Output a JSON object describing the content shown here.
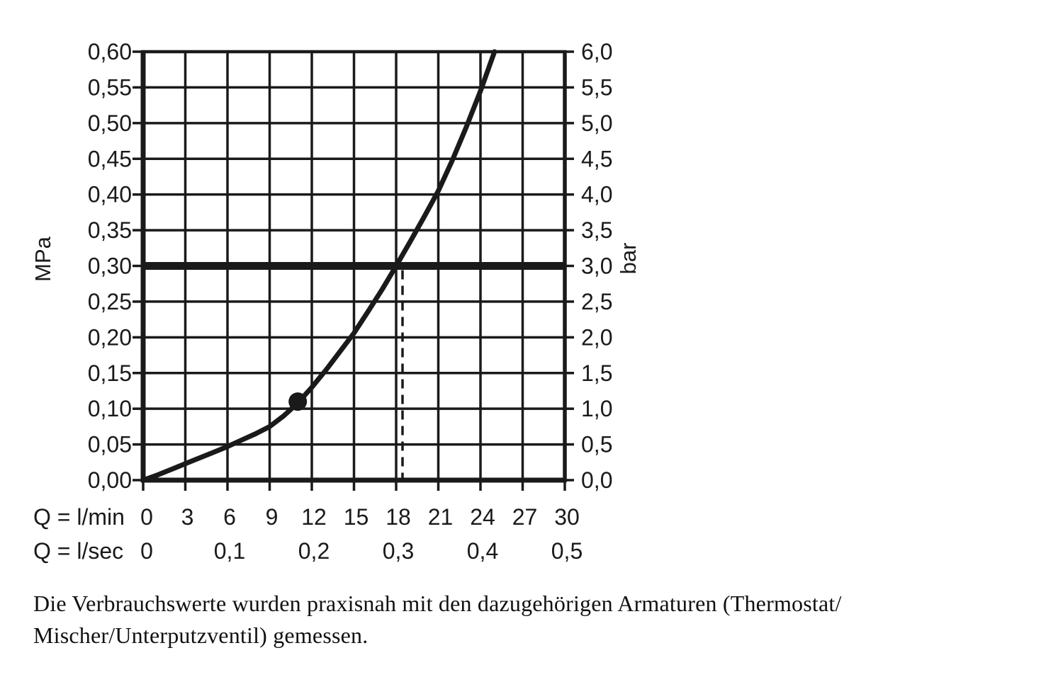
{
  "colors": {
    "ink": "#1a1a1a",
    "background": "#ffffff"
  },
  "chart_data": {
    "type": "line",
    "grid": true,
    "left_axis": {
      "unit": "MPa",
      "min": 0,
      "max": 0.6,
      "step": 0.05,
      "tick_labels": [
        "0,60",
        "0,55",
        "0,50",
        "0,45",
        "0,40",
        "0,35",
        "0,30",
        "0,25",
        "0,20",
        "0,15",
        "0,10",
        "0,05",
        "0,00"
      ]
    },
    "right_axis": {
      "unit": "bar",
      "min": 0,
      "max": 6.0,
      "step": 0.5,
      "tick_labels": [
        "6,0",
        "5,5",
        "5,0",
        "4,5",
        "4,0",
        "3,5",
        "3,0",
        "2,5",
        "2,0",
        "1,5",
        "1,0",
        "0,5",
        "0,0"
      ]
    },
    "x_axis": {
      "min": 0,
      "max": 30,
      "step": 3,
      "rows": [
        {
          "label": "Q = l/min",
          "ticks": [
            {
              "q": 0,
              "text": "0"
            },
            {
              "q": 3,
              "text": "3"
            },
            {
              "q": 6,
              "text": "6"
            },
            {
              "q": 9,
              "text": "9"
            },
            {
              "q": 12,
              "text": "12"
            },
            {
              "q": 15,
              "text": "15"
            },
            {
              "q": 18,
              "text": "18"
            },
            {
              "q": 21,
              "text": "21"
            },
            {
              "q": 24,
              "text": "24"
            },
            {
              "q": 27,
              "text": "27"
            },
            {
              "q": 30,
              "text": "30"
            }
          ]
        },
        {
          "label": "Q = l/sec",
          "ticks": [
            {
              "q": 0,
              "text": "0"
            },
            {
              "q": 6,
              "text": "0,1"
            },
            {
              "q": 12,
              "text": "0,2"
            },
            {
              "q": 18,
              "text": "0,3"
            },
            {
              "q": 24,
              "text": "0,4"
            },
            {
              "q": 30,
              "text": "0,5"
            }
          ]
        }
      ]
    },
    "series": [
      {
        "name": "flow-pressure-curve",
        "points": [
          [
            0,
            0.0
          ],
          [
            1,
            0.007
          ],
          [
            2,
            0.015
          ],
          [
            3,
            0.023
          ],
          [
            4,
            0.031
          ],
          [
            5,
            0.039
          ],
          [
            6,
            0.047
          ],
          [
            7,
            0.056
          ],
          [
            8,
            0.065
          ],
          [
            9,
            0.075
          ],
          [
            10,
            0.09
          ],
          [
            11,
            0.108
          ],
          [
            12,
            0.13
          ],
          [
            13,
            0.154
          ],
          [
            14,
            0.18
          ],
          [
            15,
            0.206
          ],
          [
            16,
            0.236
          ],
          [
            17,
            0.267
          ],
          [
            18,
            0.3
          ],
          [
            19,
            0.334
          ],
          [
            20,
            0.369
          ],
          [
            21,
            0.405
          ],
          [
            22,
            0.448
          ],
          [
            23,
            0.495
          ],
          [
            24,
            0.545
          ],
          [
            25,
            0.6
          ]
        ]
      }
    ],
    "reference_line": {
      "mpa": 0.3,
      "bar": 3.0
    },
    "drop_line": {
      "l_min": 18,
      "style": "dashed"
    },
    "marker": {
      "l_min": 11,
      "mpa": 0.11
    }
  },
  "caption": {
    "line1": "Die Verbrauchswerte wurden praxisnah mit den dazugehörigen Armaturen (Thermostat/",
    "line2": "Mischer/Unterputzventil) gemessen."
  }
}
